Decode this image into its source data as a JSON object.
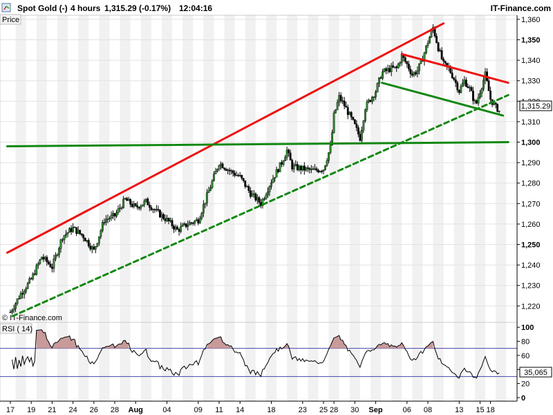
{
  "header": {
    "instrument": "Spot Gold (-)",
    "timeframe": "4 hours",
    "last_change": "1,315.29 (-0.17%)",
    "time": "12:04:16",
    "brand": "IT-Finance.com"
  },
  "main_panel": {
    "label": "Price",
    "watermark": "© IT-Finance.com",
    "current_price_label": "1,315.29"
  },
  "rsi_panel": {
    "label": "RSI ( 14)",
    "current_value_label": "35,065"
  },
  "colors": {
    "resistance": "#ee1111",
    "support": "#118811",
    "bull_candle": "#2e8b2e",
    "bear_candle": "#000000",
    "rsi_line": "#000000",
    "rsi_band": "#4444aa",
    "rsi_fill": "#c89a9a",
    "stripe": "#f1f1f1"
  },
  "chart_data": [
    {
      "type": "candlestick",
      "series": [
        {
          "name": "Spot Gold (-)"
        }
      ],
      "ylim": [
        1212,
        1362
      ],
      "y_ticks": [
        1220,
        1230,
        1240,
        1250,
        1260,
        1270,
        1280,
        1290,
        1300,
        1310,
        1320,
        1330,
        1340,
        1350,
        1360
      ],
      "y_tick_labels": [
        "1,220",
        "1,230",
        "1,240",
        "1,250",
        "1,260",
        "1,270",
        "1,280",
        "1,290",
        "1,300",
        "1,310",
        "1,320",
        "1,330",
        "1,340",
        "1,350",
        "1,360"
      ],
      "y_tick_bold": [
        1250,
        1300,
        1350
      ],
      "x_ticks": [
        {
          "label": "17",
          "day": 0
        },
        {
          "label": "19",
          "day": 2
        },
        {
          "label": "21",
          "day": 4
        },
        {
          "label": "24",
          "day": 6
        },
        {
          "label": "26",
          "day": 8
        },
        {
          "label": "28",
          "day": 10
        },
        {
          "label": "Aug",
          "day": 12,
          "bold": true
        },
        {
          "label": "04",
          "day": 15
        },
        {
          "label": "09",
          "day": 18
        },
        {
          "label": "11",
          "day": 20
        },
        {
          "label": "14",
          "day": 22
        },
        {
          "label": "18",
          "day": 25
        },
        {
          "label": "23",
          "day": 28
        },
        {
          "label": "25",
          "day": 30
        },
        {
          "label": "28",
          "day": 31
        },
        {
          "label": "30",
          "day": 33
        },
        {
          "label": "Sep",
          "day": 35,
          "bold": true
        },
        {
          "label": "06",
          "day": 38
        },
        {
          "label": "08",
          "day": 40
        },
        {
          "label": "13",
          "day": 43
        },
        {
          "label": "15",
          "day": 45
        },
        {
          "label": "18",
          "day": 46
        }
      ],
      "price_path": [
        {
          "day": 0,
          "v": 1217
        },
        {
          "day": 1,
          "v": 1226
        },
        {
          "day": 2,
          "v": 1233
        },
        {
          "day": 3,
          "v": 1244
        },
        {
          "day": 4,
          "v": 1239
        },
        {
          "day": 5,
          "v": 1254
        },
        {
          "day": 6,
          "v": 1258
        },
        {
          "day": 7,
          "v": 1254
        },
        {
          "day": 8,
          "v": 1247
        },
        {
          "day": 9,
          "v": 1262
        },
        {
          "day": 10,
          "v": 1264
        },
        {
          "day": 11,
          "v": 1272
        },
        {
          "day": 12,
          "v": 1268
        },
        {
          "day": 13,
          "v": 1271
        },
        {
          "day": 14,
          "v": 1266
        },
        {
          "day": 15,
          "v": 1262
        },
        {
          "day": 16,
          "v": 1257
        },
        {
          "day": 17,
          "v": 1260
        },
        {
          "day": 18,
          "v": 1262
        },
        {
          "day": 19,
          "v": 1276
        },
        {
          "day": 20,
          "v": 1290
        },
        {
          "day": 21,
          "v": 1286
        },
        {
          "day": 22,
          "v": 1283
        },
        {
          "day": 23,
          "v": 1275
        },
        {
          "day": 24,
          "v": 1270
        },
        {
          "day": 25,
          "v": 1281
        },
        {
          "day": 26,
          "v": 1290
        },
        {
          "day": 26.5,
          "v": 1296
        },
        {
          "day": 27,
          "v": 1288
        },
        {
          "day": 28,
          "v": 1287
        },
        {
          "day": 29,
          "v": 1286
        },
        {
          "day": 30,
          "v": 1287
        },
        {
          "day": 30.7,
          "v": 1298
        },
        {
          "day": 31,
          "v": 1313
        },
        {
          "day": 31.5,
          "v": 1322
        },
        {
          "day": 32,
          "v": 1318
        },
        {
          "day": 33,
          "v": 1308
        },
        {
          "day": 33.5,
          "v": 1302
        },
        {
          "day": 34,
          "v": 1317
        },
        {
          "day": 35,
          "v": 1325
        },
        {
          "day": 35.6,
          "v": 1334
        },
        {
          "day": 36.5,
          "v": 1336
        },
        {
          "day": 37,
          "v": 1336
        },
        {
          "day": 37.5,
          "v": 1342
        },
        {
          "day": 38,
          "v": 1338
        },
        {
          "day": 38.5,
          "v": 1333
        },
        {
          "day": 39,
          "v": 1335
        },
        {
          "day": 39.5,
          "v": 1341
        },
        {
          "day": 40,
          "v": 1349
        },
        {
          "day": 40.5,
          "v": 1356
        },
        {
          "day": 41,
          "v": 1346
        },
        {
          "day": 41.5,
          "v": 1338
        },
        {
          "day": 42,
          "v": 1336
        },
        {
          "day": 42.5,
          "v": 1331
        },
        {
          "day": 43,
          "v": 1325
        },
        {
          "day": 43.5,
          "v": 1330
        },
        {
          "day": 44,
          "v": 1326
        },
        {
          "day": 44.6,
          "v": 1318
        },
        {
          "day": 45,
          "v": 1325
        },
        {
          "day": 45.5,
          "v": 1333
        },
        {
          "day": 46,
          "v": 1321
        },
        {
          "day": 46.5,
          "v": 1317
        },
        {
          "day": 46.9,
          "v": 1315.29
        }
      ],
      "trendlines": [
        {
          "name": "red-channel-top",
          "style": "solid",
          "color": "resistance",
          "from": {
            "day": -0.3,
            "v": 1246
          },
          "to": {
            "day": 41.5,
            "v": 1358
          }
        },
        {
          "name": "red-falling-resistance",
          "style": "solid",
          "color": "resistance",
          "from": {
            "day": 37.5,
            "v": 1343
          },
          "to": {
            "day": 47.7,
            "v": 1329
          }
        },
        {
          "name": "green-dashed-support",
          "style": "dashed",
          "color": "support",
          "from": {
            "day": 0.2,
            "v": 1215
          },
          "to": {
            "day": 47.7,
            "v": 1323
          }
        },
        {
          "name": "green-horizontal-support",
          "style": "solid",
          "color": "support",
          "from": {
            "day": -0.3,
            "v": 1298
          },
          "to": {
            "day": 47.7,
            "v": 1300
          }
        },
        {
          "name": "green-falling-support",
          "style": "solid",
          "color": "support",
          "from": {
            "day": 35.6,
            "v": 1329
          },
          "to": {
            "day": 47.2,
            "v": 1313
          }
        }
      ]
    },
    {
      "type": "line",
      "series": [
        {
          "name": "RSI ( 14)"
        }
      ],
      "ylim": [
        -5,
        107
      ],
      "y_ticks": [
        0,
        20,
        40,
        60,
        80,
        100
      ],
      "y_tick_labels": [
        "0",
        "20",
        "40",
        "60",
        "80",
        "100"
      ],
      "y_tick_bold": [
        0,
        100
      ],
      "bands": [
        30,
        70
      ],
      "last_value": 35.065
    }
  ]
}
